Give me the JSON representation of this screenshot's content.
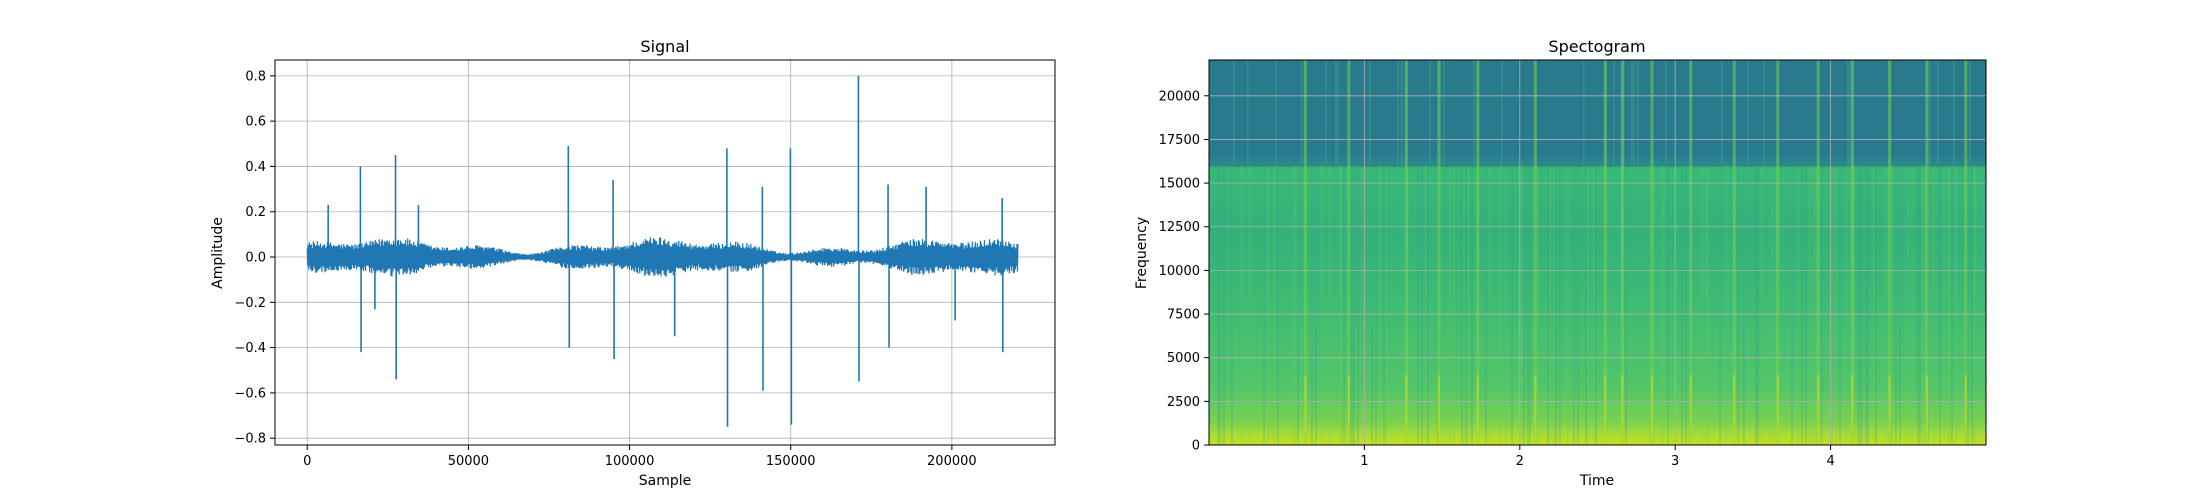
{
  "chart_data": [
    {
      "type": "line",
      "title": "Signal",
      "xlabel": "Sample",
      "ylabel": "Amplitude",
      "xlim": [
        -10000,
        232000
      ],
      "ylim": [
        -0.83,
        0.87
      ],
      "xticks": [
        0,
        50000,
        100000,
        150000,
        200000
      ],
      "xtick_labels": [
        "0",
        "50000",
        "100000",
        "150000",
        "200000"
      ],
      "yticks": [
        -0.8,
        -0.6,
        -0.4,
        -0.2,
        0.0,
        0.2,
        0.4,
        0.6,
        0.8
      ],
      "ytick_labels": [
        "−0.8",
        "−0.6",
        "−0.4",
        "−0.2",
        "0.0",
        "0.2",
        "0.4",
        "0.6",
        "0.8"
      ],
      "grid": true,
      "color": "#1f77b4",
      "sample_count": 220500,
      "noise_envelope": 0.07,
      "spikes": [
        {
          "x": 6500,
          "y": 0.23
        },
        {
          "x": 16500,
          "y": 0.4
        },
        {
          "x": 16700,
          "y": -0.42
        },
        {
          "x": 21000,
          "y": -0.23
        },
        {
          "x": 27400,
          "y": 0.45
        },
        {
          "x": 27600,
          "y": -0.54
        },
        {
          "x": 34500,
          "y": 0.23
        },
        {
          "x": 81000,
          "y": 0.49
        },
        {
          "x": 81300,
          "y": -0.4
        },
        {
          "x": 94900,
          "y": 0.34
        },
        {
          "x": 95200,
          "y": -0.45
        },
        {
          "x": 114000,
          "y": -0.35
        },
        {
          "x": 130200,
          "y": 0.48
        },
        {
          "x": 130400,
          "y": -0.75
        },
        {
          "x": 141200,
          "y": 0.31
        },
        {
          "x": 141400,
          "y": -0.59
        },
        {
          "x": 149900,
          "y": 0.48
        },
        {
          "x": 150200,
          "y": -0.74
        },
        {
          "x": 171000,
          "y": 0.8
        },
        {
          "x": 171200,
          "y": -0.55
        },
        {
          "x": 180200,
          "y": 0.32
        },
        {
          "x": 180500,
          "y": -0.4
        },
        {
          "x": 192000,
          "y": 0.31
        },
        {
          "x": 201000,
          "y": -0.28
        },
        {
          "x": 215600,
          "y": 0.26
        },
        {
          "x": 215800,
          "y": -0.42
        }
      ]
    },
    {
      "type": "heatmap",
      "title": "Spectogram",
      "xlabel": "Time",
      "ylabel": "Frequency",
      "xlim": [
        0.0,
        5.0
      ],
      "ylim": [
        0,
        22050
      ],
      "xticks": [
        1,
        2,
        3,
        4
      ],
      "xtick_labels": [
        "1",
        "2",
        "3",
        "4"
      ],
      "yticks": [
        0,
        2500,
        5000,
        7500,
        10000,
        12500,
        15000,
        17500,
        20000
      ],
      "ytick_labels": [
        "0",
        "2500",
        "5000",
        "7500",
        "10000",
        "12500",
        "15000",
        "17500",
        "20000"
      ],
      "grid": true,
      "colormap": "viridis",
      "cutoff_frequency": 16000,
      "transient_times": [
        0.62,
        0.9,
        1.27,
        1.48,
        1.73,
        2.1,
        2.55,
        2.66,
        2.85,
        3.1,
        3.38,
        3.66,
        3.92,
        4.14,
        4.38,
        4.62,
        4.87
      ]
    }
  ]
}
